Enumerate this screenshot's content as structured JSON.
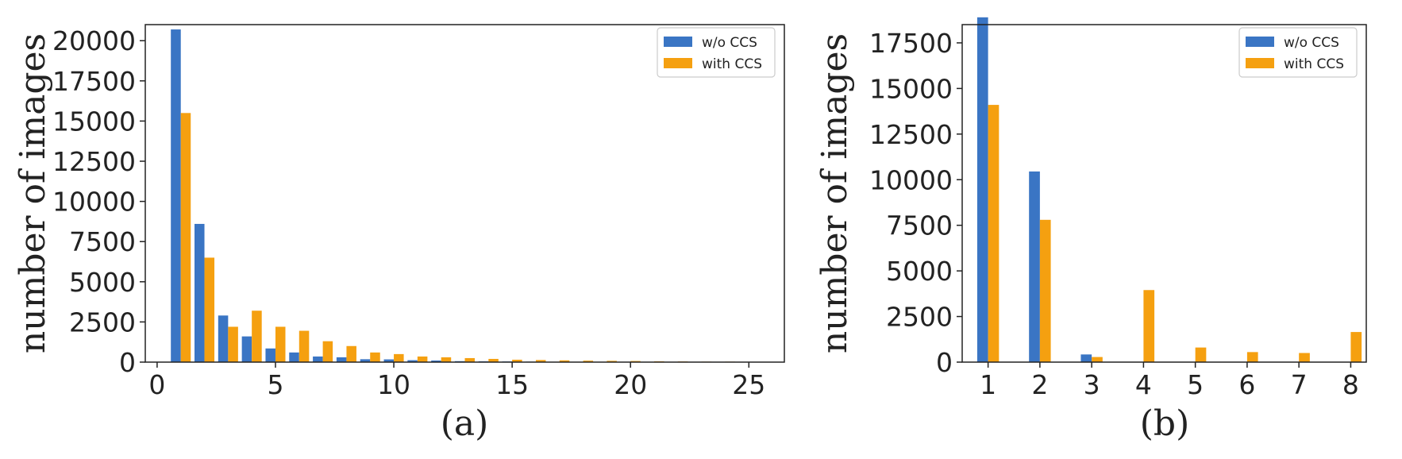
{
  "colors": {
    "without": "#3a75c4",
    "with": "#f5a010",
    "axis": "#222222"
  },
  "chart_data": [
    {
      "type": "bar",
      "caption": "(a)",
      "ylabel": "number of images",
      "xlabel": "",
      "xlim": [
        -0.5,
        26.5
      ],
      "ylim": [
        0,
        21000
      ],
      "xticks": [
        0,
        5,
        10,
        15,
        20,
        25
      ],
      "yticks": [
        0,
        2500,
        5000,
        7500,
        10000,
        12500,
        15000,
        17500,
        20000
      ],
      "legend_position": "top-right",
      "bar_width": 0.42,
      "x": [
        1,
        2,
        3,
        4,
        5,
        6,
        7,
        8,
        9,
        10,
        11,
        12,
        13,
        14,
        15,
        16,
        17,
        18,
        19,
        20,
        21,
        22,
        23,
        24,
        25
      ],
      "series": [
        {
          "name": "w/o CCS",
          "values": [
            20700,
            8600,
            2900,
            1600,
            850,
            600,
            350,
            300,
            180,
            170,
            120,
            100,
            60,
            50,
            40,
            30,
            20,
            20,
            10,
            10,
            10,
            0,
            0,
            0,
            0
          ]
        },
        {
          "name": "with CCS",
          "values": [
            15500,
            6500,
            2200,
            3200,
            2200,
            1950,
            1300,
            1000,
            600,
            500,
            350,
            300,
            250,
            200,
            150,
            130,
            110,
            90,
            80,
            70,
            50,
            40,
            30,
            30,
            20
          ]
        }
      ]
    },
    {
      "type": "bar",
      "caption": "(b)",
      "ylabel": "number of images",
      "xlabel": "",
      "xlim": [
        0.5,
        8.3
      ],
      "ylim": [
        0,
        18500
      ],
      "xticks": [
        1,
        2,
        3,
        4,
        5,
        6,
        7,
        8
      ],
      "yticks": [
        0,
        2500,
        5000,
        7500,
        10000,
        12500,
        15000,
        17500
      ],
      "legend_position": "top-right",
      "bar_width": 0.21,
      "x": [
        1,
        2,
        3,
        4,
        5,
        6,
        7,
        8
      ],
      "series": [
        {
          "name": "w/o CCS",
          "values": [
            18900,
            10450,
            420,
            0,
            0,
            0,
            0,
            0
          ]
        },
        {
          "name": "with CCS",
          "values": [
            14100,
            7800,
            280,
            3950,
            800,
            550,
            500,
            1650
          ]
        }
      ]
    }
  ]
}
